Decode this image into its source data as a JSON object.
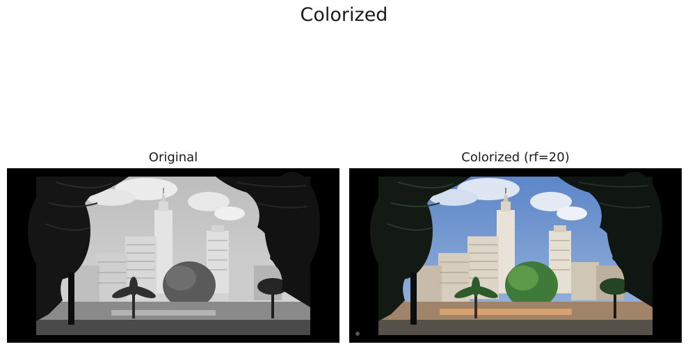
{
  "figure": {
    "title": "Colorized"
  },
  "panels": [
    {
      "title": "Original",
      "mode": "grayscale"
    },
    {
      "title": "Colorized (rf=20)",
      "mode": "color"
    }
  ]
}
